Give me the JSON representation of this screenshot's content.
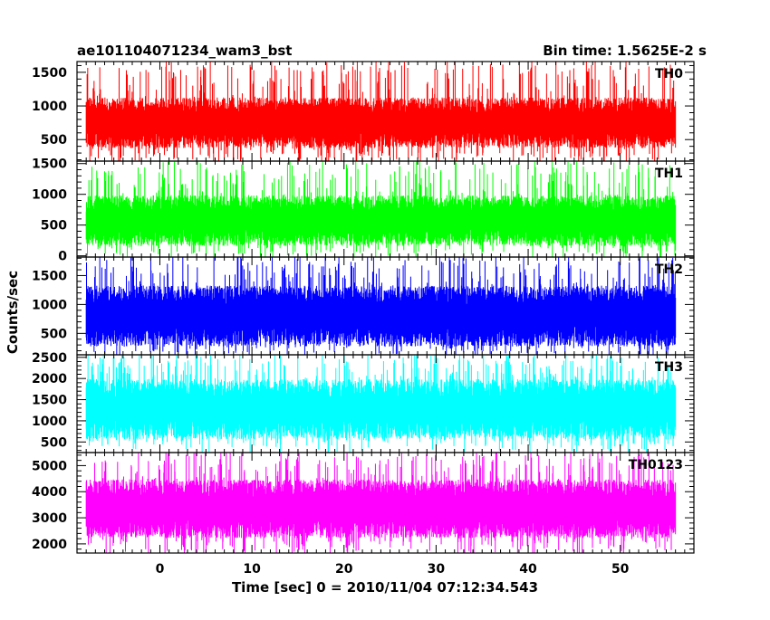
{
  "chart_data": {
    "type": "line",
    "title_left": "ae101104071234_wam3_bst",
    "title_right": "Bin time: 1.5625E-2 s",
    "xlabel": "Time [sec] 0 = 2010/11/04 07:12:34.543",
    "ylabel": "Counts/sec",
    "xlim": [
      -9,
      58
    ],
    "x_data_range": [
      -8,
      56
    ],
    "x_ticks": [
      0,
      10,
      20,
      30,
      40,
      50
    ],
    "x_tick_labels": [
      "0",
      "10",
      "20",
      "30",
      "40",
      "50"
    ],
    "grid": false,
    "panels": [
      {
        "name": "TH0",
        "color": "#ff0000",
        "ylim": [
          180,
          1660
        ],
        "y_ticks": [
          500,
          1000,
          1500
        ],
        "y_tick_labels": [
          "500",
          "1000",
          "1500"
        ],
        "baseline_low": 500,
        "baseline_high": 1000,
        "spike_max": 1660,
        "dip_min": 180
      },
      {
        "name": "TH1",
        "color": "#00ff00",
        "ylim": [
          -20,
          1540
        ],
        "y_ticks": [
          0,
          500,
          1000,
          1500
        ],
        "y_tick_labels": [
          "0",
          "500",
          "1000",
          "1500"
        ],
        "baseline_low": 300,
        "baseline_high": 850,
        "spike_max": 1500,
        "dip_min": 30
      },
      {
        "name": "TH2",
        "color": "#0000ff",
        "ylim": [
          130,
          1820
        ],
        "y_ticks": [
          500,
          1000,
          1500
        ],
        "y_tick_labels": [
          "500",
          "1000",
          "1500"
        ],
        "baseline_low": 450,
        "baseline_high": 1150,
        "spike_max": 1820,
        "dip_min": 180
      },
      {
        "name": "TH3",
        "color": "#00ffff",
        "ylim": [
          250,
          2560
        ],
        "y_ticks": [
          500,
          1000,
          1500,
          2000,
          2500
        ],
        "y_tick_labels": [
          "500",
          "1000",
          "1500",
          "2000",
          "2500"
        ],
        "baseline_low": 800,
        "baseline_high": 1750,
        "spike_max": 2560,
        "dip_min": 380
      },
      {
        "name": "TH0123",
        "color": "#ff00ff",
        "ylim": [
          1650,
          5500
        ],
        "y_ticks": [
          2000,
          3000,
          4000,
          5000
        ],
        "y_tick_labels": [
          "2000",
          "3000",
          "4000",
          "5000"
        ],
        "baseline_low": 2600,
        "baseline_high": 4100,
        "spike_max": 5500,
        "dip_min": 1700
      }
    ]
  }
}
